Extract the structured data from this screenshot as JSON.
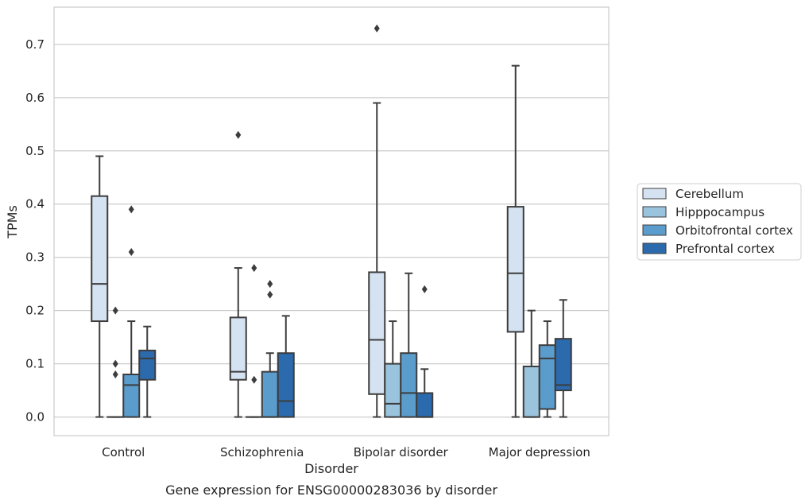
{
  "chart_data": {
    "type": "box",
    "title": "",
    "caption": "Gene expression for ENSG00000283036 by disorder",
    "xlabel": "Disorder",
    "ylabel": "TPMs",
    "ylim": [
      -0.035,
      0.77
    ],
    "yticks": [
      0.0,
      0.1,
      0.2,
      0.3,
      0.4,
      0.5,
      0.6,
      0.7
    ],
    "grid": "horizontal",
    "legend_position": "right",
    "categories": [
      "Control",
      "Schizophrenia",
      "Bipolar disorder",
      "Major depression"
    ],
    "series": [
      {
        "name": "Cerebellum",
        "color": "#d4e2f1",
        "boxes": [
          {
            "whislo": 0.0,
            "q1": 0.18,
            "med": 0.25,
            "q3": 0.415,
            "whishi": 0.49,
            "fliers": []
          },
          {
            "whislo": 0.0,
            "q1": 0.07,
            "med": 0.085,
            "q3": 0.187,
            "whishi": 0.28,
            "fliers": [
              0.53
            ]
          },
          {
            "whislo": 0.0,
            "q1": 0.043,
            "med": 0.145,
            "q3": 0.272,
            "whishi": 0.59,
            "fliers": [
              0.73
            ]
          },
          {
            "whislo": 0.0,
            "q1": 0.16,
            "med": 0.27,
            "q3": 0.395,
            "whishi": 0.66,
            "fliers": []
          }
        ]
      },
      {
        "name": "Hipppocampus",
        "color": "#9ac3dd",
        "boxes": [
          {
            "whislo": 0.0,
            "q1": 0.0,
            "med": 0.0,
            "q3": 0.0,
            "whishi": 0.0,
            "fliers": [
              0.2,
              0.1,
              0.08
            ]
          },
          {
            "whislo": 0.0,
            "q1": 0.0,
            "med": 0.0,
            "q3": 0.0,
            "whishi": 0.0,
            "fliers": [
              0.28,
              0.07
            ]
          },
          {
            "whislo": 0.0,
            "q1": 0.0,
            "med": 0.025,
            "q3": 0.1,
            "whishi": 0.18,
            "fliers": []
          },
          {
            "whislo": 0.0,
            "q1": 0.0,
            "med": 0.0,
            "q3": 0.095,
            "whishi": 0.2,
            "fliers": []
          }
        ]
      },
      {
        "name": "Orbitofrontal cortex",
        "color": "#5a9ccc",
        "boxes": [
          {
            "whislo": 0.0,
            "q1": 0.0,
            "med": 0.06,
            "q3": 0.08,
            "whishi": 0.18,
            "fliers": [
              0.39,
              0.31
            ]
          },
          {
            "whislo": 0.0,
            "q1": 0.0,
            "med": 0.0,
            "q3": 0.085,
            "whishi": 0.12,
            "fliers": [
              0.25,
              0.23
            ]
          },
          {
            "whislo": 0.0,
            "q1": 0.0,
            "med": 0.045,
            "q3": 0.12,
            "whishi": 0.27,
            "fliers": []
          },
          {
            "whislo": 0.0,
            "q1": 0.015,
            "med": 0.11,
            "q3": 0.135,
            "whishi": 0.18,
            "fliers": []
          }
        ]
      },
      {
        "name": "Prefrontal cortex",
        "color": "#2b6aad",
        "boxes": [
          {
            "whislo": 0.0,
            "q1": 0.07,
            "med": 0.11,
            "q3": 0.125,
            "whishi": 0.17,
            "fliers": []
          },
          {
            "whislo": 0.0,
            "q1": 0.0,
            "med": 0.03,
            "q3": 0.12,
            "whishi": 0.19,
            "fliers": []
          },
          {
            "whislo": 0.0,
            "q1": 0.0,
            "med": 0.0,
            "q3": 0.045,
            "whishi": 0.09,
            "fliers": [
              0.24
            ]
          },
          {
            "whislo": 0.0,
            "q1": 0.05,
            "med": 0.06,
            "q3": 0.147,
            "whishi": 0.22,
            "fliers": []
          }
        ]
      }
    ]
  }
}
